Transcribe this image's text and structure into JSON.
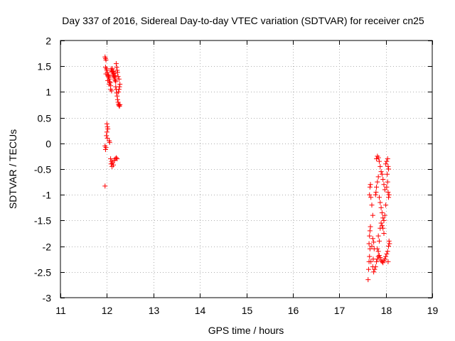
{
  "chart_data": {
    "type": "scatter",
    "title": "Day 337 of 2016, Sidereal Day-to-day VTEC variation (SDTVAR) for receiver cn25",
    "xlabel": "GPS time / hours",
    "ylabel": "SDTVAR / TECUs",
    "xlim": [
      11,
      19
    ],
    "ylim": [
      -3,
      2
    ],
    "xticks": [
      11,
      12,
      13,
      14,
      15,
      16,
      17,
      18,
      19
    ],
    "yticks": [
      2,
      1.5,
      1,
      0.5,
      0,
      -0.5,
      -1,
      -1.5,
      -2,
      -2.5,
      -3
    ],
    "grid": true,
    "marker": "+",
    "color": "#ff0000",
    "series": [
      {
        "name": "SDTVAR",
        "points": [
          [
            11.96,
            1.68
          ],
          [
            11.97,
            1.65
          ],
          [
            11.98,
            1.62
          ],
          [
            11.97,
            1.48
          ],
          [
            11.99,
            1.45
          ],
          [
            12.0,
            1.42
          ],
          [
            12.01,
            1.38
          ],
          [
            11.98,
            1.35
          ],
          [
            12.02,
            1.33
          ],
          [
            12.03,
            1.3
          ],
          [
            12.04,
            1.28
          ],
          [
            12.05,
            1.25
          ],
          [
            12.02,
            1.22
          ],
          [
            12.06,
            1.2
          ],
          [
            12.07,
            1.18
          ],
          [
            12.05,
            1.15
          ],
          [
            12.08,
            1.12
          ],
          [
            12.09,
            1.45
          ],
          [
            12.1,
            1.42
          ],
          [
            12.11,
            1.4
          ],
          [
            12.12,
            1.38
          ],
          [
            12.13,
            1.35
          ],
          [
            12.14,
            1.32
          ],
          [
            12.15,
            1.3
          ],
          [
            12.16,
            1.28
          ],
          [
            12.17,
            1.25
          ],
          [
            12.18,
            1.22
          ],
          [
            12.19,
            1.2
          ],
          [
            12.2,
            1.55
          ],
          [
            12.21,
            1.48
          ],
          [
            12.22,
            1.42
          ],
          [
            12.23,
            1.38
          ],
          [
            12.24,
            1.3
          ],
          [
            12.12,
            1.45
          ],
          [
            12.14,
            1.4
          ],
          [
            12.16,
            1.36
          ],
          [
            12.18,
            1.32
          ],
          [
            12.08,
            1.05
          ],
          [
            12.1,
            1.02
          ],
          [
            12.19,
            1.1
          ],
          [
            12.2,
            1.05
          ],
          [
            12.21,
            0.98
          ],
          [
            12.22,
            0.92
          ],
          [
            12.23,
            0.85
          ],
          [
            12.24,
            0.8
          ],
          [
            12.25,
            0.76
          ],
          [
            12.26,
            0.74
          ],
          [
            12.27,
            0.72
          ],
          [
            12.28,
            0.75
          ],
          [
            12.25,
            1.0
          ],
          [
            12.26,
            1.05
          ],
          [
            12.27,
            1.1
          ],
          [
            12.28,
            1.15
          ],
          [
            12.26,
            1.25
          ],
          [
            12.04,
            1.32
          ],
          [
            12.0,
            0.38
          ],
          [
            12.01,
            0.32
          ],
          [
            12.02,
            0.28
          ],
          [
            12.0,
            0.22
          ],
          [
            11.99,
            0.15
          ],
          [
            12.01,
            0.1
          ],
          [
            12.05,
            0.05
          ],
          [
            12.06,
            0.02
          ],
          [
            11.96,
            -0.05
          ],
          [
            11.98,
            -0.08
          ],
          [
            11.97,
            -0.12
          ],
          [
            12.08,
            -0.3
          ],
          [
            12.1,
            -0.35
          ],
          [
            12.12,
            -0.38
          ],
          [
            12.14,
            -0.42
          ],
          [
            12.16,
            -0.33
          ],
          [
            12.18,
            -0.3
          ],
          [
            12.2,
            -0.28
          ],
          [
            12.22,
            -0.3
          ],
          [
            12.11,
            -0.45
          ],
          [
            12.09,
            -0.4
          ],
          [
            11.96,
            -0.83
          ],
          [
            17.62,
            -2.65
          ],
          [
            17.63,
            -2.45
          ],
          [
            17.64,
            -2.3
          ],
          [
            17.65,
            -2.2
          ],
          [
            17.66,
            -2.05
          ],
          [
            17.64,
            -1.95
          ],
          [
            17.65,
            -1.8
          ],
          [
            17.66,
            -1.7
          ],
          [
            17.67,
            -1.62
          ],
          [
            17.68,
            -1.05
          ],
          [
            17.66,
            -0.85
          ],
          [
            17.67,
            -0.8
          ],
          [
            17.65,
            -1.0
          ],
          [
            17.7,
            -1.2
          ],
          [
            17.72,
            -1.4
          ],
          [
            17.72,
            -1.85
          ],
          [
            17.74,
            -1.92
          ],
          [
            17.75,
            -2.05
          ],
          [
            17.73,
            -2.25
          ],
          [
            17.72,
            -2.4
          ],
          [
            17.74,
            -2.5
          ],
          [
            17.76,
            -2.45
          ],
          [
            17.78,
            -2.4
          ],
          [
            17.8,
            -2.3
          ],
          [
            17.82,
            -2.25
          ],
          [
            17.84,
            -2.2
          ],
          [
            17.86,
            -2.18
          ],
          [
            17.88,
            -2.22
          ],
          [
            17.9,
            -2.28
          ],
          [
            17.92,
            -2.3
          ],
          [
            17.94,
            -2.32
          ],
          [
            17.96,
            -2.28
          ],
          [
            17.98,
            -2.25
          ],
          [
            18.0,
            -2.2
          ],
          [
            18.02,
            -2.15
          ],
          [
            18.04,
            -2.1
          ],
          [
            18.06,
            -2.0
          ],
          [
            18.08,
            -1.95
          ],
          [
            18.07,
            -1.9
          ],
          [
            18.05,
            -2.3
          ],
          [
            17.78,
            -1.0
          ],
          [
            17.79,
            -0.95
          ],
          [
            17.8,
            -0.85
          ],
          [
            17.82,
            -0.75
          ],
          [
            17.84,
            -0.65
          ],
          [
            17.8,
            -0.3
          ],
          [
            17.82,
            -0.25
          ],
          [
            17.84,
            -0.28
          ],
          [
            17.86,
            -0.35
          ],
          [
            17.88,
            -0.45
          ],
          [
            17.9,
            -0.55
          ],
          [
            17.92,
            -0.6
          ],
          [
            17.94,
            -0.7
          ],
          [
            17.96,
            -0.8
          ],
          [
            17.98,
            -0.9
          ],
          [
            17.86,
            -1.05
          ],
          [
            17.88,
            -1.15
          ],
          [
            17.9,
            -1.25
          ],
          [
            17.92,
            -1.35
          ],
          [
            17.94,
            -1.45
          ],
          [
            17.9,
            -1.55
          ],
          [
            17.92,
            -1.6
          ],
          [
            17.88,
            -1.65
          ],
          [
            17.84,
            -1.8
          ],
          [
            17.86,
            -1.9
          ],
          [
            17.82,
            -2.05
          ],
          [
            17.84,
            -2.1
          ],
          [
            18.0,
            -0.4
          ],
          [
            18.02,
            -0.35
          ],
          [
            18.04,
            -0.3
          ],
          [
            18.05,
            -0.45
          ],
          [
            18.06,
            -0.5
          ],
          [
            18.03,
            -0.6
          ],
          [
            18.04,
            -0.75
          ],
          [
            18.02,
            -0.85
          ],
          [
            18.05,
            -0.95
          ],
          [
            18.06,
            -1.05
          ],
          [
            18.07,
            -1.0
          ],
          [
            18.0,
            -1.2
          ],
          [
            17.98,
            -1.4
          ],
          [
            17.96,
            -1.5
          ],
          [
            17.94,
            -1.65
          ],
          [
            17.96,
            -1.75
          ],
          [
            17.7,
            -2.0
          ],
          [
            17.68,
            -2.3
          ]
        ]
      }
    ]
  }
}
